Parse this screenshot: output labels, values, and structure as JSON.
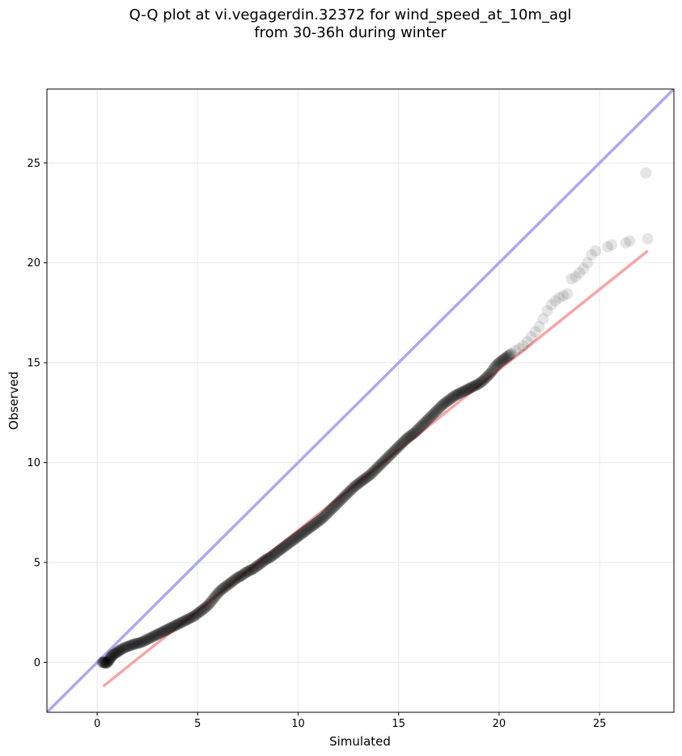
{
  "chart_data": {
    "type": "scatter",
    "title_line1": "Q-Q plot at vi.vegagerdin.32372 for wind_speed_at_10m_agl",
    "title_line2": "from 30-36h during winter",
    "xlabel": "Simulated",
    "ylabel": "Observed",
    "xlim": [
      -2.5,
      28.7
    ],
    "ylim": [
      -2.5,
      28.7
    ],
    "xticks": [
      0,
      5,
      10,
      15,
      20,
      25
    ],
    "yticks": [
      0,
      5,
      10,
      15,
      20,
      25
    ],
    "grid": true,
    "reference_line": {
      "name": "1:1 line",
      "color": "#aaaaf0"
    },
    "fit_line": {
      "color": "#f4a6a6",
      "x": [
        0.3,
        27.4
      ],
      "y": [
        -1.2,
        20.6
      ]
    },
    "points_color": "#000000",
    "points_opacity": 0.1,
    "points_x": [
      0.25,
      0.35,
      0.45,
      0.55,
      0.65,
      0.75,
      0.9,
      1.05,
      1.2,
      1.4,
      1.6,
      1.8,
      2.0,
      2.2,
      2.4,
      2.6,
      2.8,
      3.0,
      3.2,
      3.4,
      3.6,
      3.8,
      4.0,
      4.2,
      4.4,
      4.6,
      4.8,
      5.0,
      5.2,
      5.4,
      5.6,
      5.8,
      6.0,
      6.2,
      6.4,
      6.6,
      6.8,
      7.0,
      7.2,
      7.4,
      7.6,
      7.8,
      8.0,
      8.2,
      8.4,
      8.6,
      8.8,
      9.0,
      9.2,
      9.4,
      9.6,
      9.8,
      10.0,
      10.2,
      10.4,
      10.6,
      10.8,
      11.0,
      11.2,
      11.4,
      11.6,
      11.8,
      12.0,
      12.2,
      12.4,
      12.6,
      12.8,
      13.0,
      13.2,
      13.4,
      13.6,
      13.8,
      14.0,
      14.2,
      14.4,
      14.6,
      14.8,
      15.0,
      15.2,
      15.4,
      15.6,
      15.8,
      16.0,
      16.2,
      16.4,
      16.6,
      16.8,
      17.0,
      17.2,
      17.4,
      17.6,
      17.8,
      18.0,
      18.2,
      18.4,
      18.6,
      18.8,
      19.0,
      19.2,
      19.4,
      19.6,
      19.8,
      20.0,
      20.2,
      20.4,
      20.6,
      20.8,
      21.0,
      21.2,
      21.4,
      21.6,
      21.8,
      22.0,
      22.2,
      22.4,
      22.6,
      22.8,
      23.0,
      23.2,
      23.4,
      23.6,
      23.8,
      24.0,
      24.2,
      24.4,
      24.6,
      24.8,
      25.4,
      25.6,
      26.3,
      26.5,
      27.3,
      27.4
    ],
    "points_y": [
      0.0,
      0.0,
      -0.05,
      0.05,
      0.2,
      0.35,
      0.45,
      0.55,
      0.65,
      0.75,
      0.82,
      0.9,
      0.95,
      1.0,
      1.1,
      1.2,
      1.3,
      1.4,
      1.5,
      1.6,
      1.7,
      1.8,
      1.9,
      2.0,
      2.1,
      2.2,
      2.3,
      2.45,
      2.6,
      2.75,
      2.95,
      3.2,
      3.45,
      3.65,
      3.8,
      3.95,
      4.1,
      4.25,
      4.35,
      4.5,
      4.6,
      4.7,
      4.85,
      5.0,
      5.15,
      5.25,
      5.4,
      5.55,
      5.7,
      5.85,
      6.0,
      6.15,
      6.3,
      6.45,
      6.6,
      6.75,
      6.9,
      7.05,
      7.2,
      7.4,
      7.6,
      7.8,
      8.0,
      8.2,
      8.4,
      8.6,
      8.8,
      8.95,
      9.1,
      9.25,
      9.4,
      9.6,
      9.8,
      10.0,
      10.2,
      10.4,
      10.6,
      10.8,
      11.0,
      11.2,
      11.35,
      11.5,
      11.7,
      11.9,
      12.1,
      12.3,
      12.5,
      12.7,
      12.9,
      13.05,
      13.2,
      13.35,
      13.45,
      13.55,
      13.65,
      13.75,
      13.85,
      13.95,
      14.1,
      14.3,
      14.5,
      14.8,
      15.0,
      15.15,
      15.3,
      15.45,
      15.6,
      15.7,
      15.85,
      16.05,
      16.3,
      16.55,
      16.8,
      17.2,
      17.6,
      17.9,
      18.1,
      18.25,
      18.35,
      18.45,
      19.2,
      19.3,
      19.5,
      19.7,
      20.0,
      20.4,
      20.6,
      20.8,
      20.9,
      21.0,
      21.1,
      24.5,
      21.2
    ]
  }
}
